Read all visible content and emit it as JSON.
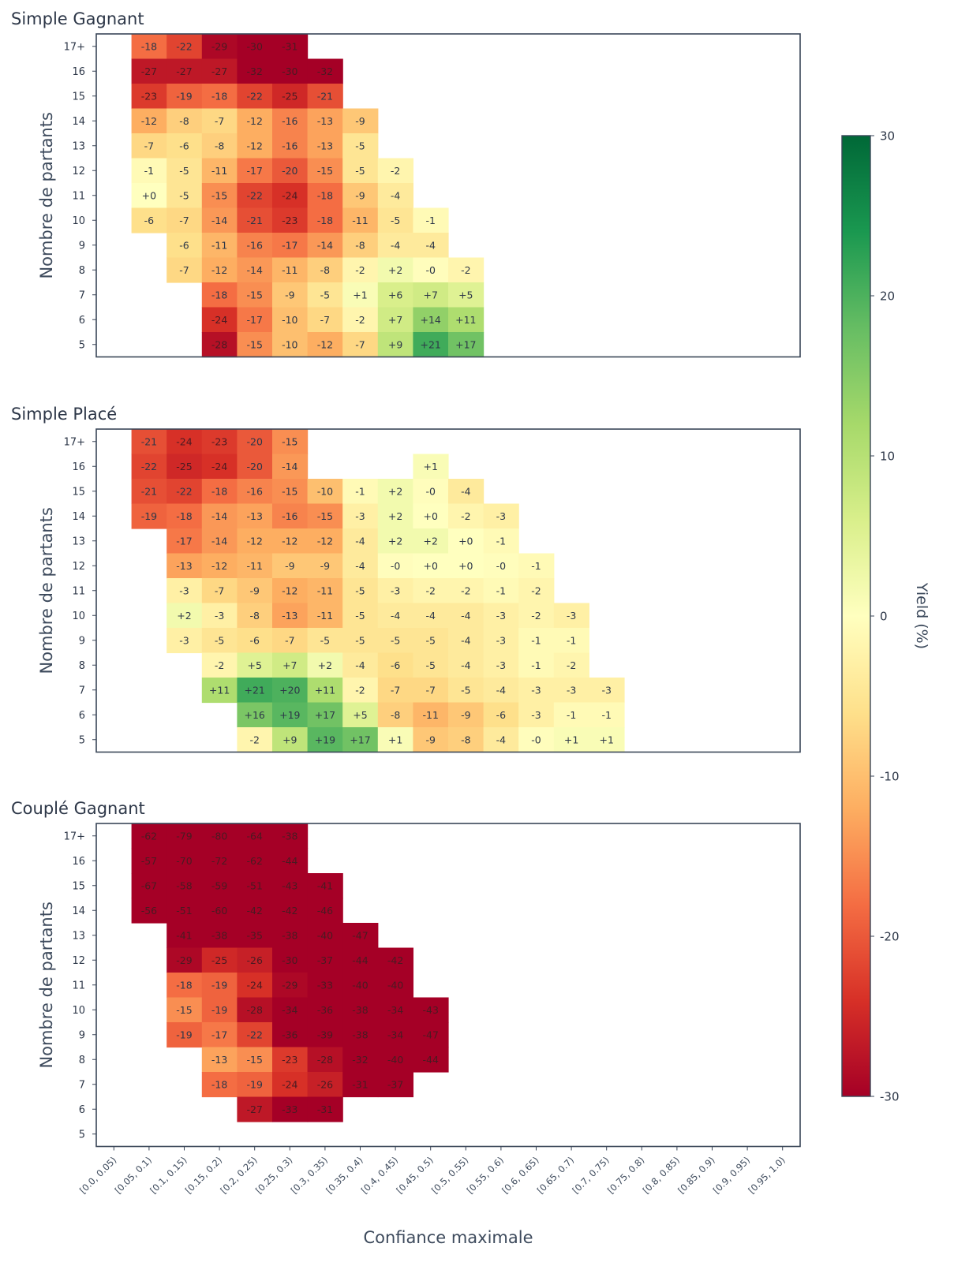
{
  "chart_data": {
    "type": "heatmap",
    "xlabel": "Confiance maximale",
    "ylabel": "Nombre de partants",
    "x_categories": [
      "[0.0, 0.05)",
      "[0.05, 0.1)",
      "[0.1, 0.15)",
      "[0.15, 0.2)",
      "[0.2, 0.25)",
      "[0.25, 0.3)",
      "[0.3, 0.35)",
      "[0.35, 0.4)",
      "[0.4, 0.45)",
      "[0.45, 0.5)",
      "[0.5, 0.55)",
      "[0.55, 0.6)",
      "[0.6, 0.65)",
      "[0.65, 0.7)",
      "[0.7, 0.75)",
      "[0.75, 0.8)",
      "[0.8, 0.85)",
      "[0.85, 0.9)",
      "[0.9, 0.95)",
      "[0.95, 1.0)"
    ],
    "y_categories": [
      "17+",
      "16",
      "15",
      "14",
      "13",
      "12",
      "11",
      "10",
      "9",
      "8",
      "7",
      "6",
      "5"
    ],
    "colorbar": {
      "label": "Yield (%)",
      "vmin": -30,
      "vmax": 30,
      "ticks": [
        "-30",
        "-20",
        "-10",
        "0",
        "10",
        "20",
        "30"
      ],
      "colormap": "RdYlGn"
    },
    "panels": [
      {
        "title": "Simple Gagnant",
        "values": [
          [
            null,
            -18,
            -22,
            -29,
            -30,
            -31,
            null,
            null,
            null,
            null,
            null,
            null,
            null,
            null,
            null,
            null,
            null,
            null,
            null,
            null
          ],
          [
            null,
            -27,
            -27,
            -27,
            -32,
            -30,
            -32,
            null,
            null,
            null,
            null,
            null,
            null,
            null,
            null,
            null,
            null,
            null,
            null,
            null
          ],
          [
            null,
            -23,
            -19,
            -18,
            -22,
            -25,
            -21,
            null,
            null,
            null,
            null,
            null,
            null,
            null,
            null,
            null,
            null,
            null,
            null,
            null
          ],
          [
            null,
            -12,
            -8,
            -7,
            -12,
            -16,
            -13,
            -9,
            null,
            null,
            null,
            null,
            null,
            null,
            null,
            null,
            null,
            null,
            null,
            null
          ],
          [
            null,
            -7,
            -6,
            -8,
            -12,
            -16,
            -13,
            -5,
            null,
            null,
            null,
            null,
            null,
            null,
            null,
            null,
            null,
            null,
            null,
            null
          ],
          [
            null,
            -1,
            -5,
            -11,
            -17,
            -20,
            -15,
            -5,
            -2,
            null,
            null,
            null,
            null,
            null,
            null,
            null,
            null,
            null,
            null,
            null
          ],
          [
            null,
            0,
            -5,
            -15,
            -22,
            -24,
            -18,
            -9,
            -4,
            null,
            null,
            null,
            null,
            null,
            null,
            null,
            null,
            null,
            null,
            null
          ],
          [
            null,
            -6,
            -7,
            -14,
            -21,
            -23,
            -18,
            -11,
            -5,
            -1,
            null,
            null,
            null,
            null,
            null,
            null,
            null,
            null,
            null,
            null
          ],
          [
            null,
            null,
            -6,
            -11,
            -16,
            -17,
            -14,
            -8,
            -4,
            -4,
            null,
            null,
            null,
            null,
            null,
            null,
            null,
            null,
            null,
            null
          ],
          [
            null,
            null,
            -7,
            -12,
            -14,
            -11,
            -8,
            -2,
            2,
            -0.3,
            -2,
            null,
            null,
            null,
            null,
            null,
            null,
            null,
            null,
            null
          ],
          [
            null,
            null,
            null,
            -18,
            -15,
            -9,
            -5,
            1,
            6,
            7,
            5,
            null,
            null,
            null,
            null,
            null,
            null,
            null,
            null,
            null
          ],
          [
            null,
            null,
            null,
            -24,
            -17,
            -10,
            -7,
            -2,
            7,
            14,
            11,
            null,
            null,
            null,
            null,
            null,
            null,
            null,
            null,
            null
          ],
          [
            null,
            null,
            null,
            -28,
            -15,
            -10,
            -12,
            -7,
            9,
            21,
            17,
            null,
            null,
            null,
            null,
            null,
            null,
            null,
            null,
            null
          ]
        ]
      },
      {
        "title": "Simple Placé",
        "values": [
          [
            null,
            -21,
            -24,
            -23,
            -20,
            -15,
            null,
            null,
            null,
            null,
            null,
            null,
            null,
            null,
            null,
            null,
            null,
            null,
            null,
            null
          ],
          [
            null,
            -22,
            -25,
            -24,
            -20,
            -14,
            null,
            null,
            null,
            1,
            null,
            null,
            null,
            null,
            null,
            null,
            null,
            null,
            null,
            null
          ],
          [
            null,
            -21,
            -22,
            -18,
            -16,
            -15,
            -10,
            -1,
            2,
            -0.3,
            -4,
            null,
            null,
            null,
            null,
            null,
            null,
            null,
            null,
            null
          ],
          [
            null,
            -19,
            -18,
            -14,
            -13,
            -16,
            -15,
            -3,
            2,
            0,
            -2,
            -3,
            null,
            null,
            null,
            null,
            null,
            null,
            null,
            null
          ],
          [
            null,
            null,
            -17,
            -14,
            -12,
            -12,
            -12,
            -4,
            2,
            2,
            0,
            -1,
            null,
            null,
            null,
            null,
            null,
            null,
            null,
            null
          ],
          [
            null,
            null,
            -13,
            -12,
            -11,
            -9,
            -9,
            -4,
            -0.3,
            0,
            0,
            -0.3,
            -1,
            null,
            null,
            null,
            null,
            null,
            null,
            null
          ],
          [
            null,
            null,
            -3,
            -7,
            -9,
            -12,
            -11,
            -5,
            -3,
            -2,
            -2,
            -1,
            -2,
            null,
            null,
            null,
            null,
            null,
            null,
            null
          ],
          [
            null,
            null,
            2,
            -3,
            -8,
            -13,
            -11,
            -5,
            -4,
            -4,
            -4,
            -3,
            -2,
            -3,
            null,
            null,
            null,
            null,
            null,
            null
          ],
          [
            null,
            null,
            -3,
            -5,
            -6,
            -7,
            -5,
            -5,
            -5,
            -5,
            -4,
            -3,
            -1,
            -1,
            null,
            null,
            null,
            null,
            null,
            null
          ],
          [
            null,
            null,
            null,
            -2,
            5,
            7,
            2,
            -4,
            -6,
            -5,
            -4,
            -3,
            -1,
            -2,
            null,
            null,
            null,
            null,
            null,
            null
          ],
          [
            null,
            null,
            null,
            11,
            21,
            20,
            11,
            -2,
            -7,
            -7,
            -5,
            -4,
            -3,
            -3,
            -3,
            null,
            null,
            null,
            null,
            null
          ],
          [
            null,
            null,
            null,
            null,
            16,
            19,
            17,
            5,
            -8,
            -11,
            -9,
            -6,
            -3,
            -1,
            -1,
            null,
            null,
            null,
            null,
            null
          ],
          [
            null,
            null,
            null,
            null,
            -2,
            9,
            19,
            17,
            1,
            -9,
            -8,
            -4,
            -0.3,
            1,
            1,
            null,
            null,
            null,
            null,
            null
          ]
        ]
      },
      {
        "title": "Couplé Gagnant",
        "values": [
          [
            null,
            -62,
            -79,
            -80,
            -64,
            -38,
            null,
            null,
            null,
            null,
            null,
            null,
            null,
            null,
            null,
            null,
            null,
            null,
            null,
            null
          ],
          [
            null,
            -57,
            -70,
            -72,
            -62,
            -44,
            null,
            null,
            null,
            null,
            null,
            null,
            null,
            null,
            null,
            null,
            null,
            null,
            null,
            null
          ],
          [
            null,
            -67,
            -58,
            -59,
            -51,
            -43,
            -41,
            null,
            null,
            null,
            null,
            null,
            null,
            null,
            null,
            null,
            null,
            null,
            null,
            null
          ],
          [
            null,
            -56,
            -51,
            -60,
            -42,
            -42,
            -46,
            null,
            null,
            null,
            null,
            null,
            null,
            null,
            null,
            null,
            null,
            null,
            null,
            null
          ],
          [
            null,
            null,
            -41,
            -38,
            -35,
            -38,
            -40,
            -47,
            null,
            null,
            null,
            null,
            null,
            null,
            null,
            null,
            null,
            null,
            null,
            null
          ],
          [
            null,
            null,
            -29,
            -25,
            -26,
            -30,
            -37,
            -44,
            -42,
            null,
            null,
            null,
            null,
            null,
            null,
            null,
            null,
            null,
            null,
            null
          ],
          [
            null,
            null,
            -18,
            -19,
            -24,
            -29,
            -33,
            -40,
            -40,
            null,
            null,
            null,
            null,
            null,
            null,
            null,
            null,
            null,
            null,
            null
          ],
          [
            null,
            null,
            -15,
            -19,
            -28,
            -34,
            -36,
            -38,
            -34,
            -43,
            null,
            null,
            null,
            null,
            null,
            null,
            null,
            null,
            null,
            null
          ],
          [
            null,
            null,
            -19,
            -17,
            -22,
            -36,
            -39,
            -38,
            -34,
            -47,
            null,
            null,
            null,
            null,
            null,
            null,
            null,
            null,
            null,
            null
          ],
          [
            null,
            null,
            null,
            -13,
            -15,
            -23,
            -28,
            -32,
            -40,
            -44,
            null,
            null,
            null,
            null,
            null,
            null,
            null,
            null,
            null,
            null
          ],
          [
            null,
            null,
            null,
            -18,
            -19,
            -24,
            -26,
            -31,
            -37,
            null,
            null,
            null,
            null,
            null,
            null,
            null,
            null,
            null,
            null,
            null
          ],
          [
            null,
            null,
            null,
            null,
            -27,
            -33,
            -31,
            null,
            null,
            null,
            null,
            null,
            null,
            null,
            null,
            null,
            null,
            null,
            null,
            null
          ],
          [
            null,
            null,
            null,
            null,
            null,
            null,
            null,
            null,
            null,
            null,
            null,
            null,
            null,
            null,
            null,
            null,
            null,
            null,
            null,
            null
          ]
        ]
      }
    ]
  }
}
